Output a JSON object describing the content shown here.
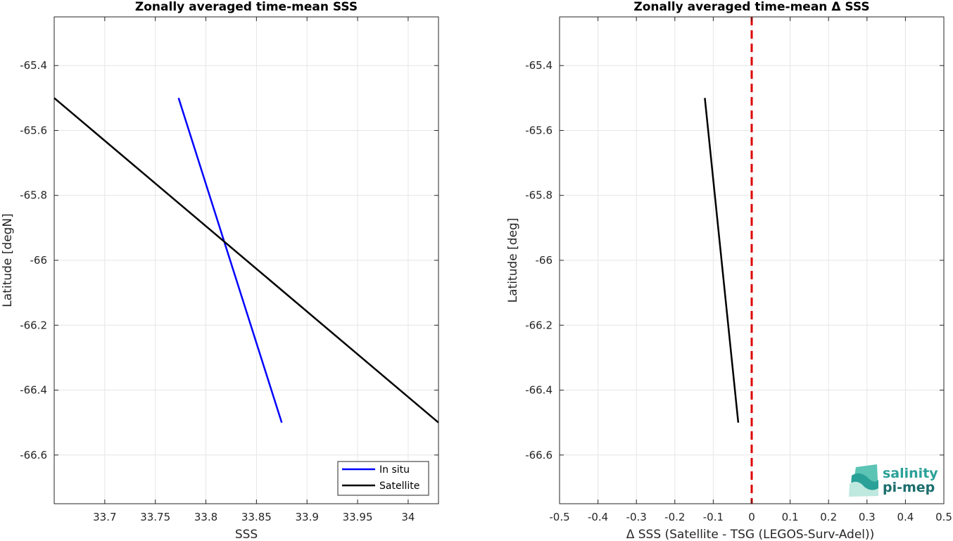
{
  "chart_data": [
    {
      "type": "line",
      "title": "Zonally averaged time-mean SSS",
      "xlabel": "SSS",
      "ylabel": "Latitude [degN]",
      "xlim": [
        33.65,
        34.03
      ],
      "ylim": [
        -66.75,
        -65.25
      ],
      "xticks": [
        33.7,
        33.75,
        33.8,
        33.85,
        33.9,
        33.95,
        34.0
      ],
      "xtick_labels": [
        "33.7",
        "33.75",
        "33.8",
        "33.85",
        "33.9",
        "33.95",
        "34"
      ],
      "yticks": [
        -65.4,
        -65.6,
        -65.8,
        -66.0,
        -66.2,
        -66.4,
        -66.6
      ],
      "ytick_labels": [
        "-65.4",
        "-65.6",
        "-65.8",
        "-66",
        "-66.2",
        "-66.4",
        "-66.6"
      ],
      "grid": true,
      "legend_position": "bottom-right",
      "series": [
        {
          "name": "In situ",
          "color": "#0000ff",
          "x": [
            33.773,
            33.875
          ],
          "y": [
            -65.5,
            -66.5
          ]
        },
        {
          "name": "Satellite",
          "color": "#000000",
          "x": [
            33.65,
            34.03
          ],
          "y": [
            -65.5,
            -66.5
          ]
        }
      ]
    },
    {
      "type": "line",
      "title": "Zonally averaged time-mean Δ SSS",
      "xlabel": "Δ SSS (Satellite - TSG (LEGOS-Surv-Adel))",
      "ylabel": "Latitude [deg]",
      "xlim": [
        -0.5,
        0.5
      ],
      "ylim": [
        -66.75,
        -65.25
      ],
      "xticks": [
        -0.5,
        -0.4,
        -0.3,
        -0.2,
        -0.1,
        0,
        0.1,
        0.2,
        0.3,
        0.4,
        0.5
      ],
      "xtick_labels": [
        "-0.5",
        "-0.4",
        "-0.3",
        "-0.2",
        "-0.1",
        "0",
        "0.1",
        "0.2",
        "0.3",
        "0.4",
        "0.5"
      ],
      "yticks": [
        -65.4,
        -65.6,
        -65.8,
        -66.0,
        -66.2,
        -66.4,
        -66.6
      ],
      "ytick_labels": [
        "-65.4",
        "-65.6",
        "-65.8",
        "-66",
        "-66.2",
        "-66.4",
        "-66.6"
      ],
      "grid": true,
      "reference_line": {
        "x": 0,
        "color": "#dd0000",
        "style": "dashed"
      },
      "series": [
        {
          "color": "#000000",
          "x": [
            -0.122,
            -0.035
          ],
          "y": [
            -65.5,
            -66.5
          ]
        }
      ]
    }
  ],
  "logo": {
    "line1": "salinity",
    "line2": "pi-mep",
    "color_light": "#2aa198",
    "color_dark": "#1c6e6e"
  }
}
